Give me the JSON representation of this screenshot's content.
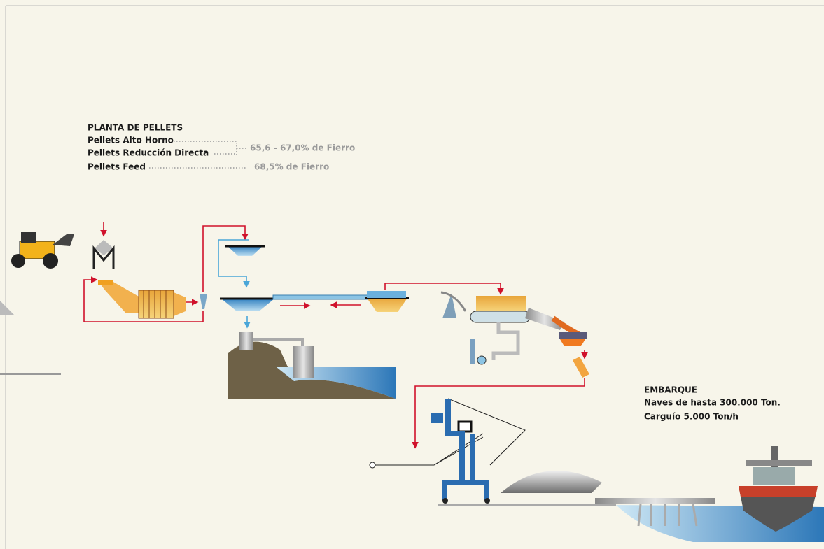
{
  "pellets": {
    "title": "PLANTA DE PELLETS",
    "products": [
      "Pellets Alto Horno",
      "Pellets Reducción Directa",
      "Pellets Feed"
    ],
    "grades": [
      "65,6 - 67,0% de Fierro",
      "68,5% de Fierro"
    ]
  },
  "shipping": {
    "title": "EMBARQUE",
    "lines": [
      "Naves de hasta 300.000 Ton.",
      "Carguío 5.000 Ton/h"
    ]
  }
}
